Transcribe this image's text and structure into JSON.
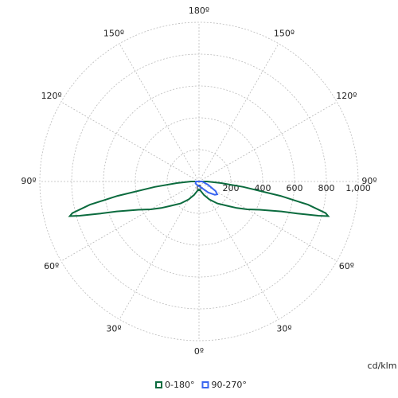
{
  "chart_data": {
    "type": "polar",
    "unit": "cd/klm",
    "rlim": [
      0,
      1000
    ],
    "rticks": [
      0,
      200,
      400,
      600,
      800,
      {
        "value": 1000,
        "label": "1,000"
      }
    ],
    "angle_ticks": [
      {
        "value": -150,
        "label": "150º"
      },
      {
        "value": -120,
        "label": "120º"
      },
      {
        "value": -90,
        "label": "90º"
      },
      {
        "value": -60,
        "label": "60º"
      },
      {
        "value": -30,
        "label": "30º"
      },
      {
        "value": 0,
        "label": "0º"
      },
      {
        "value": 30,
        "label": "30º"
      },
      {
        "value": 60,
        "label": "60º"
      },
      {
        "value": 90,
        "label": "90º"
      },
      {
        "value": 120,
        "label": "120º"
      },
      {
        "value": 150,
        "label": "150º"
      },
      {
        "value": 180,
        "label": "180º"
      }
    ],
    "grid": true,
    "series": [
      {
        "name": "0-180°",
        "color": "#0b6b3e",
        "x": [
          -90,
          -86,
          -83,
          -80,
          -78,
          -76,
          -75,
          -74,
          -72,
          -70,
          -65,
          -60,
          -55,
          -50,
          -40,
          -30,
          -20,
          -10,
          0,
          10,
          20,
          30,
          40,
          50,
          55,
          60,
          65,
          70,
          72,
          74,
          75,
          76,
          78,
          80,
          83,
          86,
          90
        ],
        "values": [
          50,
          140,
          280,
          520,
          700,
          820,
          840,
          780,
          650,
          550,
          420,
          350,
          290,
          240,
          180,
          130,
          90,
          60,
          50,
          60,
          90,
          130,
          180,
          240,
          290,
          350,
          420,
          550,
          650,
          780,
          840,
          820,
          700,
          520,
          280,
          140,
          50
        ]
      },
      {
        "name": "90-270°",
        "color": "#3a66f0",
        "x": [
          -90,
          -60,
          -30,
          0,
          20,
          40,
          50,
          55,
          60,
          70,
          90
        ],
        "values": [
          20,
          25,
          25,
          30,
          40,
          90,
          130,
          140,
          120,
          60,
          20
        ]
      }
    ]
  }
}
